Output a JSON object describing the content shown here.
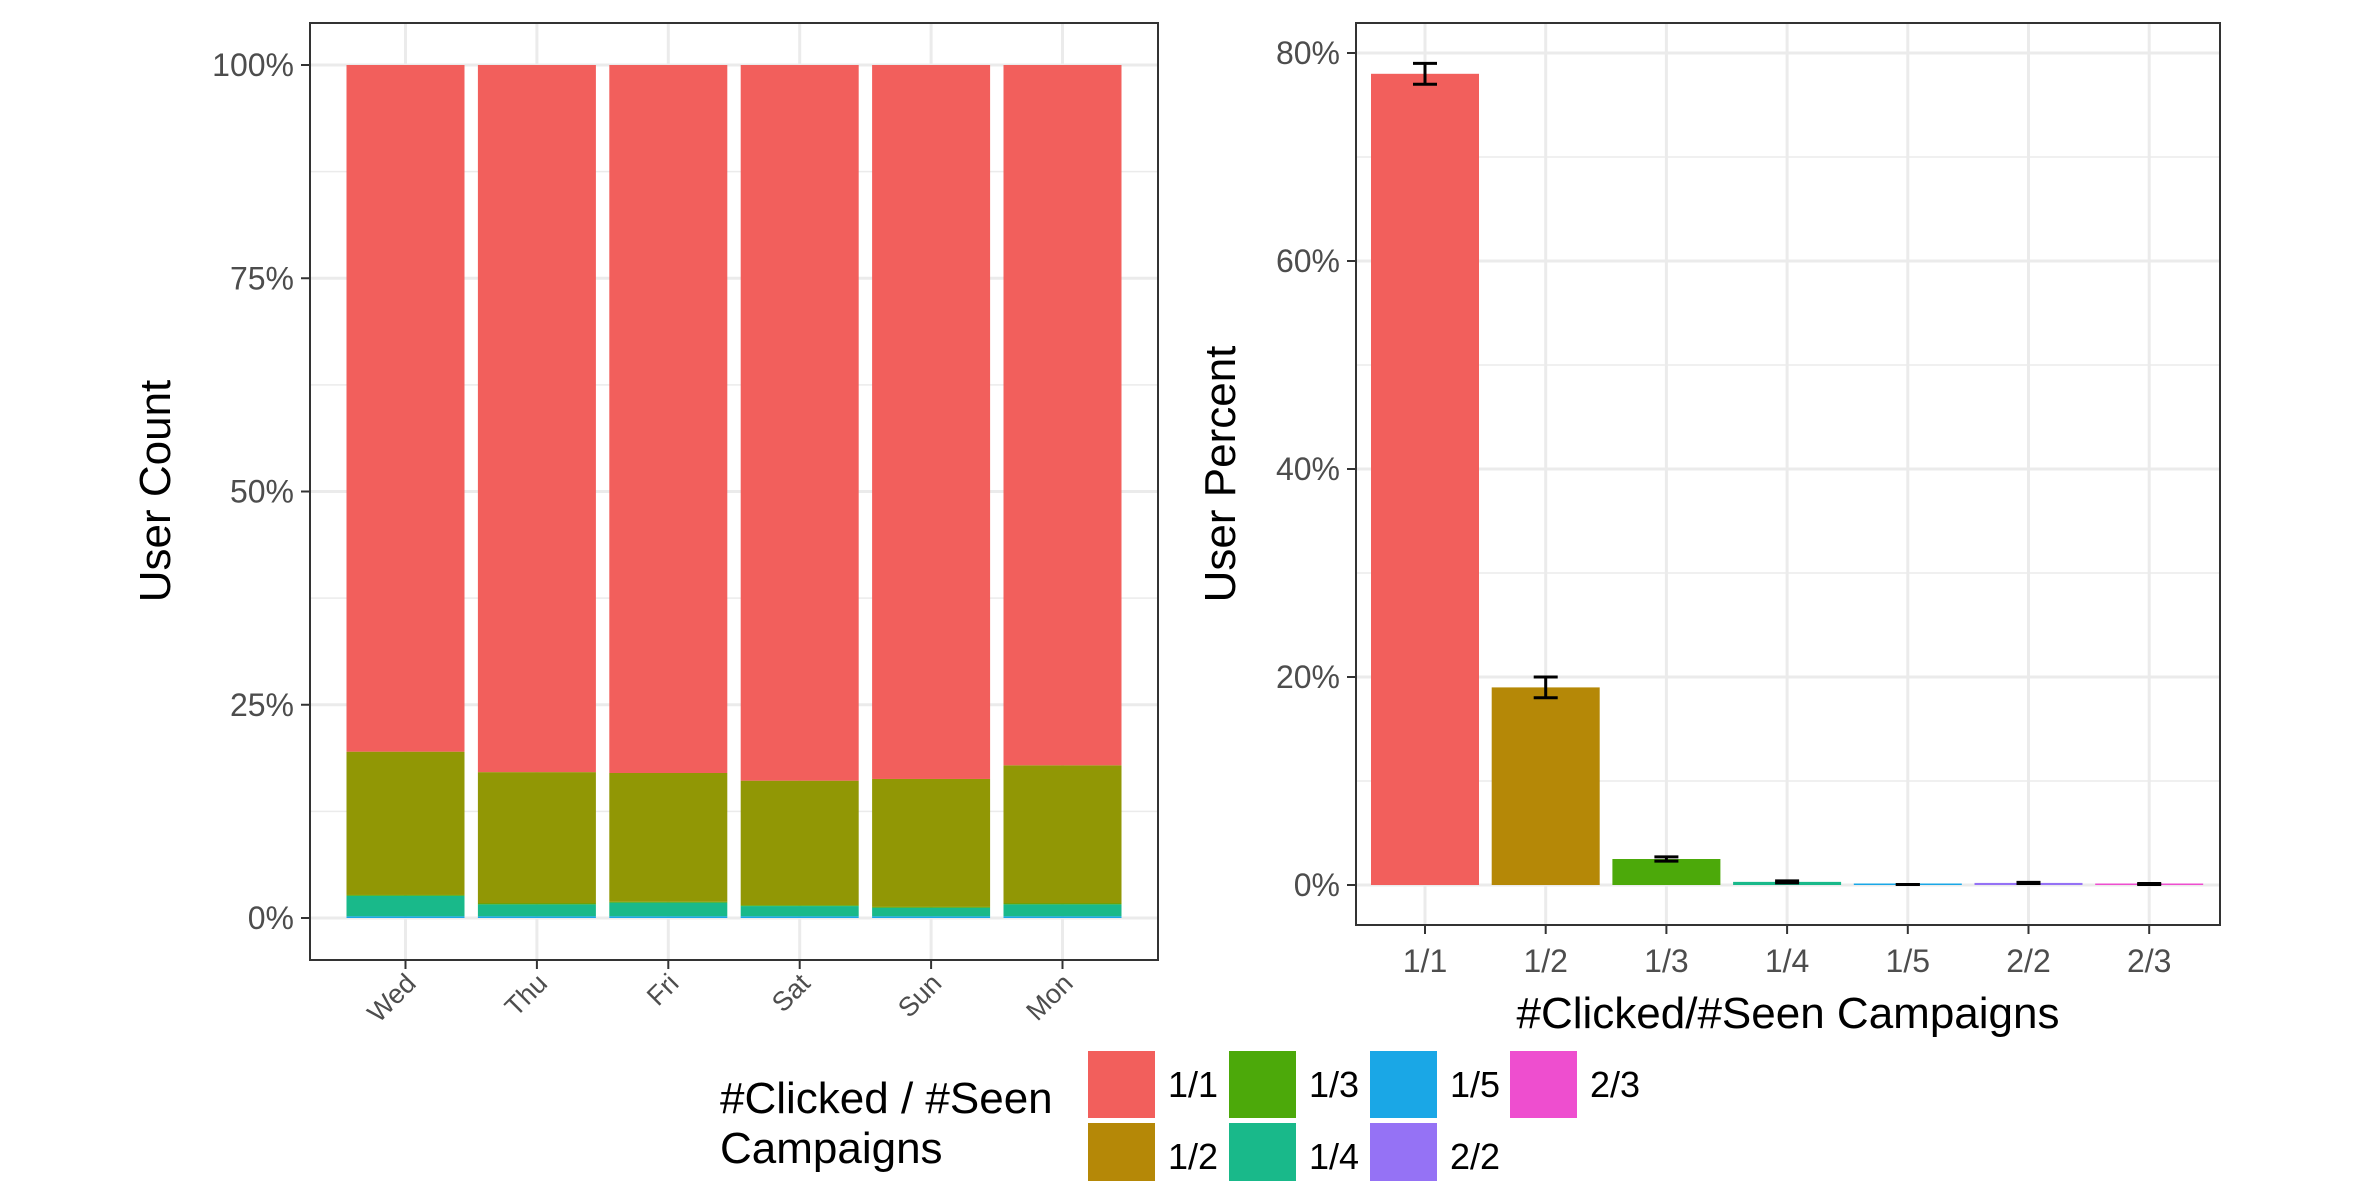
{
  "chart_data": [
    {
      "type": "bar",
      "stacked": true,
      "normalized": true,
      "ylabel": "User Count",
      "xlabel": "",
      "ylim": [
        0,
        1
      ],
      "yticks": [
        "0%",
        "25%",
        "50%",
        "75%",
        "100%"
      ],
      "grid": true,
      "categories": [
        "Wed",
        "Thu",
        "Fri",
        "Sat",
        "Sun",
        "Mon"
      ],
      "series": [
        {
          "name": "1/5",
          "color": "#1aa7e6",
          "values": [
            0.002,
            0.002,
            0.002,
            0.002,
            0.002,
            0.002
          ]
        },
        {
          "name": "1/4",
          "color": "#19b98a",
          "values": [
            0.024,
            0.014,
            0.016,
            0.012,
            0.01,
            0.014
          ]
        },
        {
          "name": "1/3",
          "color": "#4ca90a",
          "values": [
            0.001,
            0.001,
            0.001,
            0.001,
            0.001,
            0.001
          ]
        },
        {
          "name": "1/2",
          "color": "#919705",
          "values": [
            0.168,
            0.154,
            0.151,
            0.146,
            0.15,
            0.162
          ]
        },
        {
          "name": "1/1",
          "color": "#f25f5c",
          "values": [
            0.805,
            0.829,
            0.83,
            0.839,
            0.837,
            0.821
          ]
        }
      ]
    },
    {
      "type": "bar",
      "ylabel": "User Percent",
      "xlabel": "#Clicked/#Seen Campaigns",
      "ylim": [
        0,
        0.8
      ],
      "yticks": [
        "0%",
        "20%",
        "40%",
        "60%",
        "80%"
      ],
      "grid": true,
      "categories": [
        "1/1",
        "1/2",
        "1/3",
        "1/4",
        "1/5",
        "2/2",
        "2/3"
      ],
      "values": [
        0.78,
        0.19,
        0.025,
        0.003,
        0.0005,
        0.002,
        0.001
      ],
      "error": [
        0.01,
        0.01,
        0.002,
        0.001,
        0.0,
        0.0005,
        0.0005
      ],
      "colors": [
        "#f25f5c",
        "#b58807",
        "#4ca90a",
        "#19b98a",
        "#1aa7e6",
        "#9572f5",
        "#ee4ecf"
      ]
    }
  ],
  "legend": {
    "title_line1": "#Clicked / #Seen",
    "title_line2": "Campaigns",
    "items": [
      {
        "label": "1/1",
        "color": "#f25f5c"
      },
      {
        "label": "1/2",
        "color": "#b58807"
      },
      {
        "label": "1/3",
        "color": "#4ca90a"
      },
      {
        "label": "1/4",
        "color": "#19b98a"
      },
      {
        "label": "1/5",
        "color": "#1aa7e6"
      },
      {
        "label": "2/2",
        "color": "#9572f5"
      },
      {
        "label": "2/3",
        "color": "#ee4ecf"
      }
    ]
  }
}
